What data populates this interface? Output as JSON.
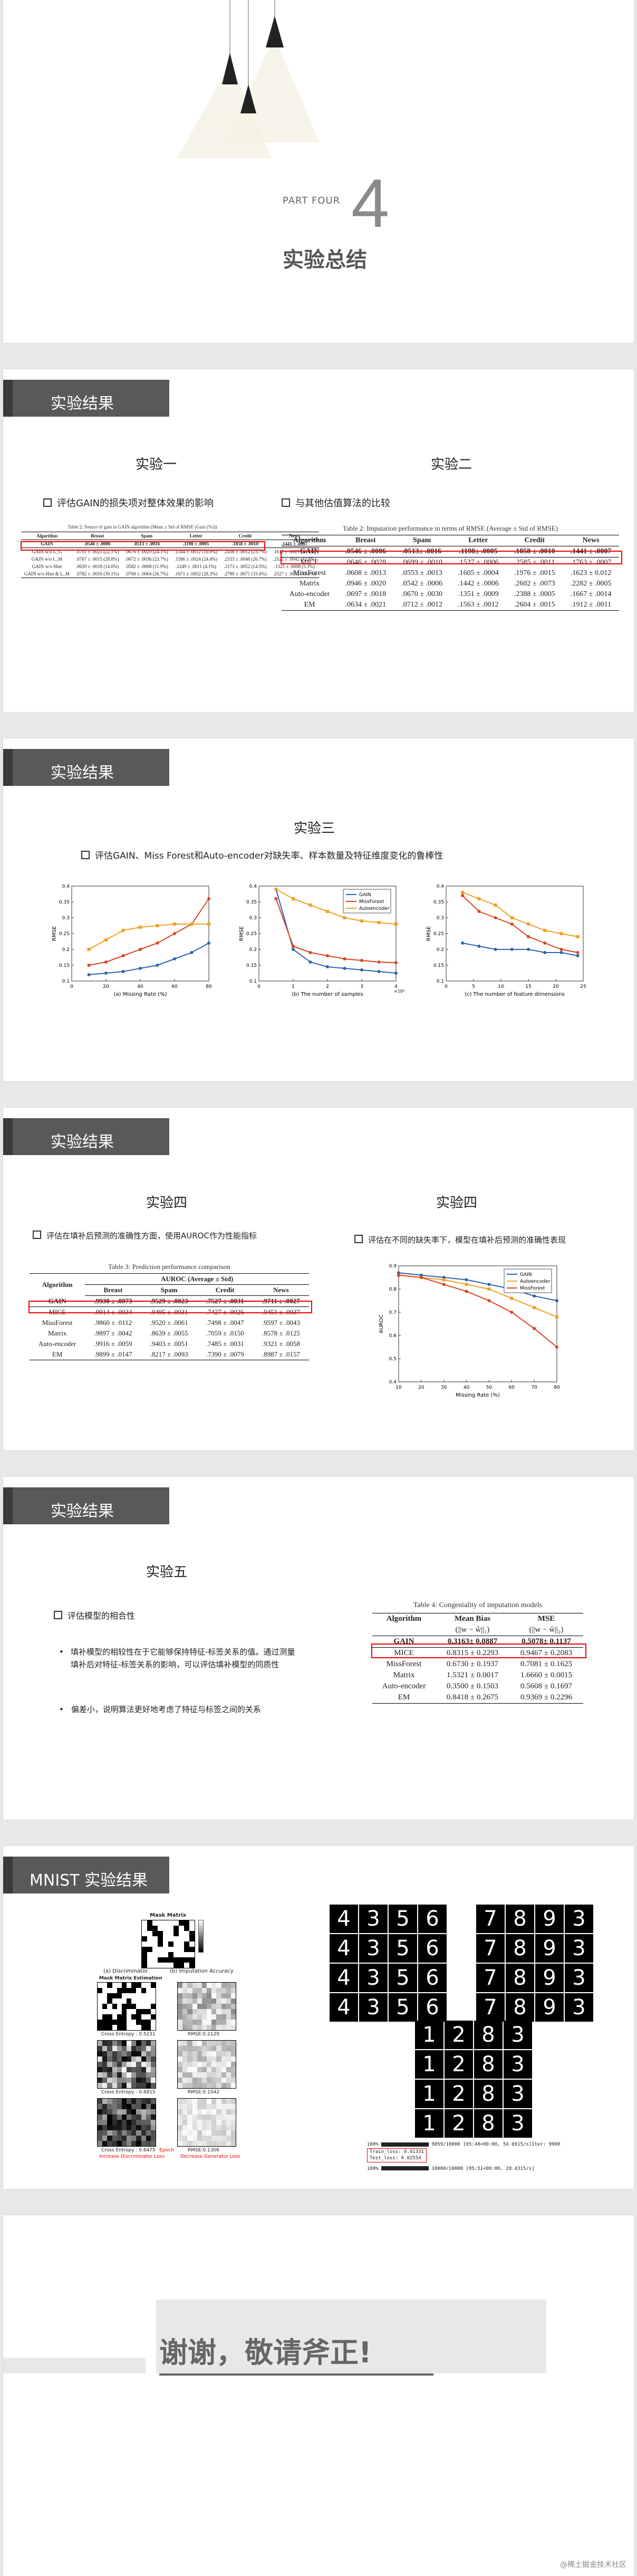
{
  "cover": {
    "part": "PART FOUR",
    "number": "4",
    "title": "实验总结"
  },
  "s1": {
    "header": "实验结果",
    "left_title": "实验一",
    "left_bullet": "评估GAIN的损失项对整体效果的影响",
    "left_caption": "Table 2: Source of gain in GAIN algorithm (Mean ± Std of RMSE (Gain (%)))",
    "left_table": {
      "headers": [
        "Algorithm",
        "Breast",
        "Spam",
        "Letter",
        "Credit",
        "News"
      ],
      "rows": [
        [
          "GAIN",
          ".0546 ± .0006",
          ".0513 ± .0016",
          ".1198 ± .0005",
          ".1858 ± .0010",
          ".1441 ± .0007"
        ],
        [
          "GAIN w/o L_G",
          ".0701 ± .0021 (22.1%)",
          ".0676 ± .0029 (24.1%)",
          ".1344 ± .0012 (10.9%)",
          ".2436 ± .0012 (23.7%)",
          ".1612 ± .0023 (10.6%)"
        ],
        [
          "GAIN w/o L_M",
          ".0767 ± .0015 (28.8%)",
          ".0672 ± .0036 (23.7%)",
          ".1586 ± .0024 (24.4%)",
          ".2533 ± .0048 (26.7%)",
          ".2522 ± .0042 (42.9%)"
        ],
        [
          "GAIN w/o Hint",
          ".0639 ± .0018 (14.6%)",
          ".0582 ± .0008 (11.9%)",
          ".1249 ± .0011 (4.1%)",
          ".2173 ± .0052 (14.5%)",
          ".1521 ± .0008 (5.3%)"
        ],
        [
          "GAIN w/o Hint & L_M",
          ".0782 ± .0016 (30.1%)",
          ".0700 ± .0064 (26.7%)",
          ".1671 ± .0052 (28.3%)",
          ".2789 ± .0071 (33.4%)",
          ".2527 ± .0052 (43.0%)"
        ]
      ]
    },
    "right_title": "实验二",
    "right_bullet": "与其他估值算法的比较",
    "right_caption": "Table 2: Imputation performance in terms of RMSE (Average ± Std of RMSE)",
    "right_table": {
      "headers": [
        "Algorithm",
        "Breast",
        "Spam",
        "Letter",
        "Credit",
        "News"
      ],
      "rows": [
        [
          "GAIN",
          ".0546 ± .0006",
          ".0513± .0016",
          ".1198± .0005",
          ".1858 ± .0010",
          ".1441 ± .0007"
        ],
        [
          "MICE",
          ".0646 ± .0028",
          ".0699 ± .0010",
          ".1537 ± .0006",
          ".2585 ± .0011",
          ".1763 ± .0007"
        ],
        [
          "MissForest",
          ".0608 ± .0013",
          ".0553 ± .0013",
          ".1605 ± .0004",
          ".1976 ± .0015",
          ".1623 ± 0.012"
        ],
        [
          "Matrix",
          ".0946 ± .0020",
          ".0542 ± .0006",
          ".1442 ± .0006",
          ".2602 ± .0073",
          ".2282 ± .0005"
        ],
        [
          "Auto-encoder",
          ".0697 ± .0018",
          ".0670 ± .0030",
          ".1351 ± .0009",
          ".2388 ± .0005",
          ".1667 ± .0014"
        ],
        [
          "EM",
          ".0634 ± .0021",
          ".0712 ± .0012",
          ".1563 ± .0012",
          ".2604 ± .0015",
          ".1912 ± .0011"
        ]
      ]
    }
  },
  "s2": {
    "header": "实验结果",
    "title": "实验三",
    "bullet": "评估GAIN、Miss Forest和Auto-encoder对缺失率、样本数量及特征维度变化的鲁棒性",
    "legend": [
      "GAIN",
      "MissForest",
      "Autoencoder"
    ],
    "colors": {
      "gain": "#2a64b0",
      "missforest": "#d9441e",
      "autoencoder": "#f0a020"
    },
    "chart_data": [
      {
        "type": "line",
        "xlabel": "(a) Missing Rate (%)",
        "ylabel": "RMSE",
        "xticks": [
          "0",
          "20",
          "40",
          "60",
          "80"
        ],
        "yticks": [
          "0.1",
          "0.15",
          "0.2",
          "0.25",
          "0.3",
          "0.35",
          "0.4"
        ],
        "xlim": [
          0,
          80
        ],
        "ylim": [
          0.1,
          0.4
        ],
        "x": [
          10,
          20,
          30,
          40,
          50,
          60,
          70,
          80
        ],
        "series": [
          {
            "name": "GAIN",
            "values": [
              0.12,
              0.125,
              0.13,
              0.14,
              0.15,
              0.17,
              0.19,
              0.22
            ]
          },
          {
            "name": "MissForest",
            "values": [
              0.15,
              0.16,
              0.18,
              0.2,
              0.22,
              0.25,
              0.28,
              0.36
            ]
          },
          {
            "name": "Autoencoder",
            "values": [
              0.2,
              0.23,
              0.26,
              0.27,
              0.275,
              0.28,
              0.28,
              0.28
            ]
          }
        ]
      },
      {
        "type": "line",
        "xlabel": "(b) The number of samples",
        "ylabel": "RMSE",
        "xticks": [
          "0",
          "1",
          "2",
          "3",
          "4"
        ],
        "yticks": [
          "0.1",
          "0.15",
          "0.2",
          "0.25",
          "0.3",
          "0.35",
          "0.4"
        ],
        "xlim": [
          0,
          4
        ],
        "ylim": [
          0.1,
          0.4
        ],
        "x_unit_label": "×10⁴",
        "x": [
          0.5,
          1,
          1.5,
          2,
          2.5,
          3,
          3.5,
          4
        ],
        "series": [
          {
            "name": "GAIN",
            "values": [
              0.39,
              0.2,
              0.16,
              0.145,
              0.14,
              0.135,
              0.13,
              0.125
            ]
          },
          {
            "name": "MissForest",
            "values": [
              0.36,
              0.21,
              0.19,
              0.18,
              0.17,
              0.165,
              0.16,
              0.158
            ]
          },
          {
            "name": "Autoencoder",
            "values": [
              0.39,
              0.36,
              0.34,
              0.32,
              0.3,
              0.29,
              0.285,
              0.28
            ]
          }
        ]
      },
      {
        "type": "line",
        "xlabel": "(c) The number of feature dimensions",
        "ylabel": "RMSE",
        "xticks": [
          "0",
          "5",
          "10",
          "15",
          "20",
          "25"
        ],
        "yticks": [
          "0.1",
          "0.15",
          "0.2",
          "0.25",
          "0.3",
          "0.35",
          "0.4"
        ],
        "xlim": [
          0,
          25
        ],
        "ylim": [
          0.1,
          0.4
        ],
        "x": [
          3,
          6,
          9,
          12,
          15,
          18,
          21,
          24
        ],
        "series": [
          {
            "name": "GAIN",
            "values": [
              0.22,
              0.21,
              0.2,
              0.2,
              0.2,
              0.19,
              0.19,
              0.18
            ]
          },
          {
            "name": "MissForest",
            "values": [
              0.37,
              0.32,
              0.3,
              0.28,
              0.24,
              0.22,
              0.2,
              0.19
            ]
          },
          {
            "name": "Autoencoder",
            "values": [
              0.38,
              0.36,
              0.34,
              0.3,
              0.28,
              0.26,
              0.25,
              0.24
            ]
          }
        ]
      }
    ]
  },
  "s3": {
    "header": "实验结果",
    "left_title": "实验四",
    "left_bullet": "评估在填补后预测的准确性方面，使用AUROC作为性能指标",
    "left_caption": "Table 3: Prediction performance comparison",
    "left_table": {
      "group_header": "AUROC (Average ± Std)",
      "headers": [
        "Algorithm",
        "Breast",
        "Spam",
        "Credit",
        "News"
      ],
      "rows": [
        [
          "GAIN",
          ".9930 ± .0073",
          ".9529 ± .0023",
          ".7527 ± .0031",
          ".9711 ± .0027"
        ],
        [
          "MICE",
          ".9914 ± .0034",
          ".9495 ± .0031",
          ".7427 ± .0026",
          ".9451 ± .0037"
        ],
        [
          "MissForest",
          ".9860 ± .0112",
          ".9520 ± .0061",
          ".7498 ± .0047",
          ".9597 ± .0043"
        ],
        [
          "Matrix",
          ".9897 ± .0042",
          ".8639 ± .0055",
          ".7059 ± .0150",
          ".8578 ± .0125"
        ],
        [
          "Auto-encoder",
          ".9916 ± .0059",
          ".9403 ± .0051",
          ".7485 ± .0031",
          ".9321 ± .0058"
        ],
        [
          "EM",
          ".9899 ± .0147",
          ".8217 ± .0093",
          ".7390 ± .0079",
          ".8987 ± .0157"
        ]
      ]
    },
    "right_title": "实验四",
    "right_bullet": "评估在不同的缺失率下，模型在填补后预测的准确性表现",
    "chart_data": {
      "type": "line",
      "xlabel": "Missing Rate (%)",
      "ylabel": "AUROC",
      "xticks": [
        "10",
        "20",
        "30",
        "40",
        "50",
        "60",
        "70",
        "80"
      ],
      "yticks": [
        "0.4",
        "0.5",
        "0.6",
        "0.7",
        "0.8",
        "0.9"
      ],
      "xlim": [
        10,
        80
      ],
      "ylim": [
        0.4,
        0.9
      ],
      "x": [
        10,
        20,
        30,
        40,
        50,
        60,
        70,
        80
      ],
      "series": [
        {
          "name": "GAIN",
          "values": [
            0.87,
            0.86,
            0.85,
            0.84,
            0.82,
            0.8,
            0.77,
            0.75
          ]
        },
        {
          "name": "Autoencoder",
          "values": [
            0.86,
            0.85,
            0.84,
            0.82,
            0.8,
            0.76,
            0.72,
            0.68
          ]
        },
        {
          "name": "MissForest",
          "values": [
            0.86,
            0.85,
            0.82,
            0.79,
            0.75,
            0.7,
            0.63,
            0.55
          ]
        }
      ]
    }
  },
  "s4": {
    "header": "实验结果",
    "title": "实验五",
    "bullet1": "评估模型的相合性",
    "bullet2": "填补模型的相较性在于它能够保持特征-标签关系的值。通过测量填补后对特征-标签关系的影响，可以评估填补模型的同质性",
    "bullet3": "偏差小，说明算法更好地考虑了特征与标签之间的关系",
    "caption": "Table 4: Congeniality of imputation models",
    "table": {
      "headers": [
        "Algorithm",
        "Mean Bias",
        "MSE"
      ],
      "sub_headers": [
        "",
        "(||w − ŵ||₁)",
        "(||w − ŵ||₂)"
      ],
      "rows": [
        [
          "GAIN",
          "0.3163± 0.0887",
          "0.5078± 0.1137"
        ],
        [
          "MICE",
          "0.8315 ± 0.2293",
          "0.9467 ± 0.2083"
        ],
        [
          "MissForest",
          "0.6730 ± 0.1937",
          "0.7081 ± 0.1625"
        ],
        [
          "Matrix",
          "1.5321 ± 0.0017",
          "1.6660 ± 0.0015"
        ],
        [
          "Auto-encoder",
          "0.3500 ± 0.1503",
          "0.5608 ± 0.1697"
        ],
        [
          "EM",
          "0.8418 ± 0.2675",
          "0.9369 ± 0.2296"
        ]
      ]
    }
  },
  "s5": {
    "header": "MNIST 实验结果",
    "mask_title": "Mask Matrix",
    "label_a": "(a) Discriminator",
    "label_b": "(b) Imputation Accuracy",
    "mask_est": "Mask Matrix Estimation",
    "ce1": "Cross Entropy : 0.5231",
    "rmse1": "RMSE:0.2129",
    "ce2": "Cross Entropy : 0.6815",
    "rmse2": "RMSE:0.1542",
    "ce3": "Cross Entropy : 0.6475",
    "rmse3": "RMSE:0.1306",
    "inc_loss": "Increase Discriminator Loss",
    "dec_loss": "Decrease Generator Loss",
    "epoch": "Epoch",
    "digits_a": [
      "4",
      "3",
      "5",
      "6",
      "4",
      "3",
      "5",
      "6",
      "4",
      "3",
      "5",
      "6",
      "4",
      "3",
      "5",
      "6"
    ],
    "digits_b": [
      "7",
      "8",
      "9",
      "3",
      "7",
      "8",
      "9",
      "3",
      "7",
      "8",
      "9",
      "3",
      "7",
      "8",
      "9",
      "3"
    ],
    "digits_c": [
      "1",
      "2",
      "8",
      "3",
      "1",
      "2",
      "8",
      "3",
      "1",
      "2",
      "8",
      "3",
      "1",
      "2",
      "8",
      "3"
    ],
    "log1": "9059/10000 [05:40<00:00, 54.6915/s]Iter: 9900",
    "log2": "Train_loss: 0.01331",
    "log3": "Test_loss: 0.02554",
    "log4": "10000/10000 [05:51<00:00, 28.4315/s]",
    "log_prefix1": "100%",
    "log_prefix2": "100%"
  },
  "closing": {
    "text": "谢谢，敬请斧正!",
    "watermark": "@稀土掘金技术社区"
  }
}
